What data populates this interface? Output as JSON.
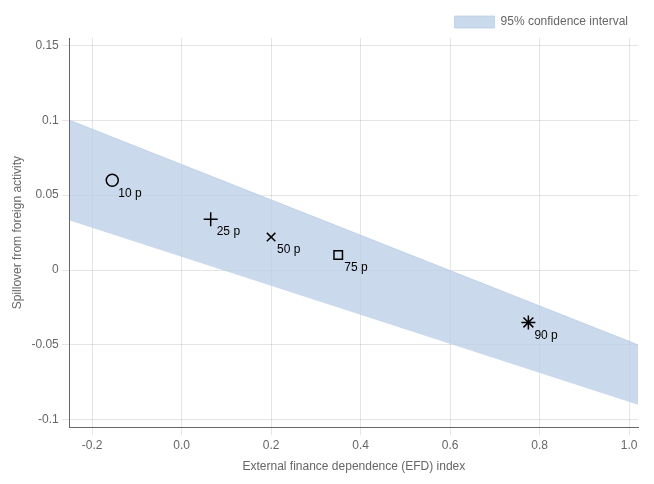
{
  "chart_data": {
    "type": "scatter",
    "xlabel": "External finance dependence (EFD) index",
    "ylabel": "Spillover from foreign activity",
    "xlim": [
      -0.25,
      1.02
    ],
    "ylim": [
      -0.105,
      0.155
    ],
    "xticks": [
      -0.2,
      {
        "value": 0,
        "label": "0.0"
      },
      0.2,
      0.4,
      0.6,
      0.8,
      {
        "value": 1,
        "label": "1.0"
      }
    ],
    "yticks": [
      -0.1,
      -0.05,
      0,
      0.05,
      0.1,
      0.15
    ],
    "grid": true,
    "legend": "upper right",
    "series": [
      {
        "name": "95% confidence interval",
        "type": "area",
        "color": "#b8cce4",
        "x": [
          -0.25,
          1.02
        ],
        "lower": [
          0.033,
          -0.09
        ],
        "upper": [
          0.1,
          -0.05
        ]
      },
      {
        "type": "scatter",
        "marker": "circle",
        "color": "#000000",
        "x": [
          -0.155
        ],
        "values": [
          0.06
        ]
      },
      {
        "type": "scatter",
        "marker": "plus",
        "color": "#000000",
        "x": [
          0.065
        ],
        "values": [
          0.034
        ]
      },
      {
        "type": "scatter",
        "marker": "x",
        "color": "#000000",
        "x": [
          0.2
        ],
        "values": [
          0.022
        ]
      },
      {
        "type": "scatter",
        "marker": "square",
        "color": "#000000",
        "x": [
          0.35
        ],
        "values": [
          0.01
        ]
      },
      {
        "type": "scatter",
        "marker": "star",
        "color": "#000000",
        "x": [
          0.775
        ],
        "values": [
          -0.035
        ]
      }
    ],
    "annotations": [
      {
        "x": -0.155,
        "y": 0.06,
        "text": "10 p"
      },
      {
        "x": 0.065,
        "y": 0.034,
        "text": "25 p"
      },
      {
        "x": 0.2,
        "y": 0.022,
        "text": "50 p"
      },
      {
        "x": 0.35,
        "y": 0.01,
        "text": "75 p"
      },
      {
        "x": 0.775,
        "y": -0.035,
        "text": "90 p"
      }
    ]
  }
}
